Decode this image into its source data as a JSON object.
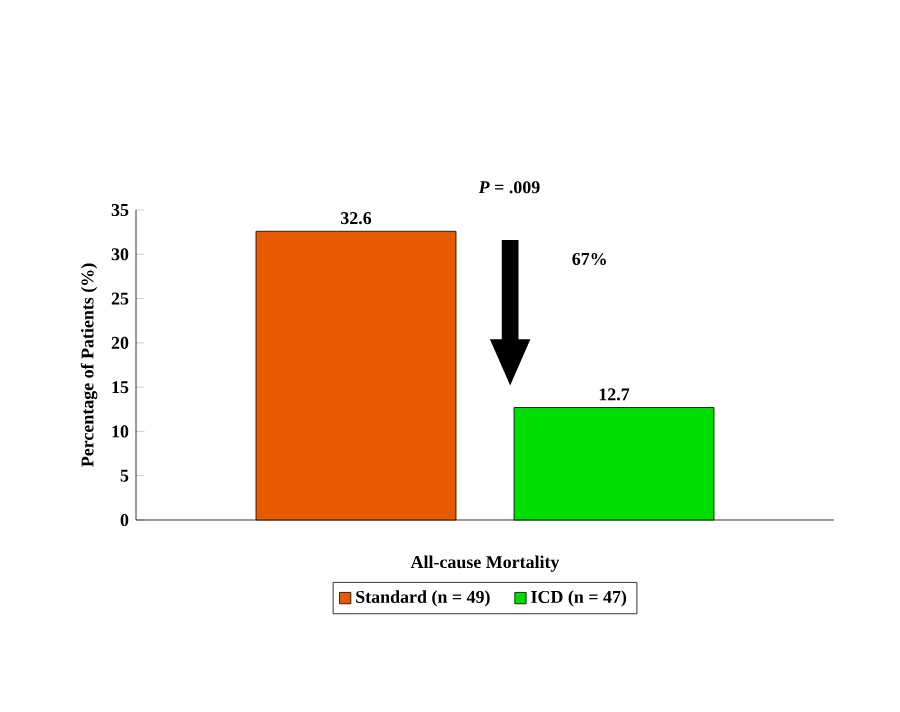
{
  "chart_data": {
    "type": "bar",
    "ylabel": "Percentage of Patients (%)",
    "categories": [
      "All-cause Mortality"
    ],
    "series": [
      {
        "name": "Standard (n = 49)",
        "color": "#e85a00",
        "values": [
          32.6
        ]
      },
      {
        "name": "ICD (n = 47)",
        "color": "#00dd00",
        "values": [
          12.7
        ]
      }
    ],
    "ylim": [
      0,
      35
    ],
    "yticks": [
      0,
      5,
      10,
      15,
      20,
      25,
      30,
      35
    ],
    "data_labels": true,
    "legend": "bottom",
    "annotations": [
      "*P* = .009",
      "67%"
    ]
  }
}
